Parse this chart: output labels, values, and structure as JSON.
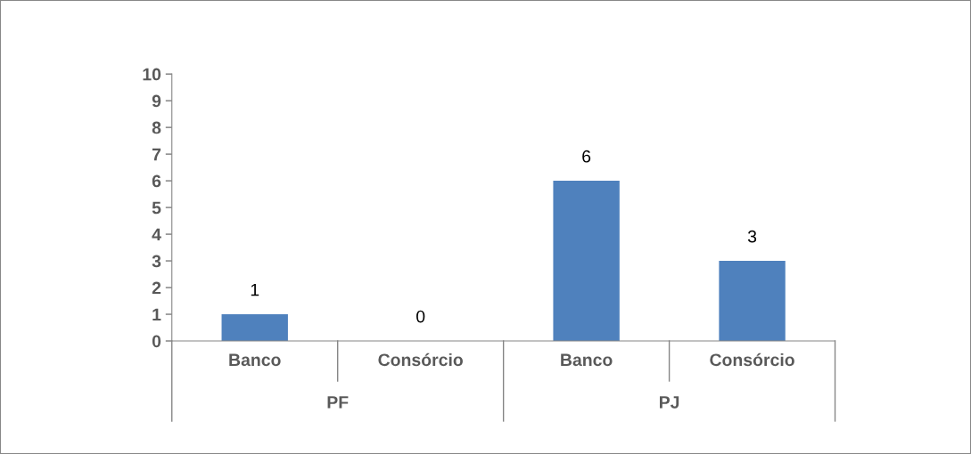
{
  "chart_data": {
    "type": "bar",
    "categories": [
      "Banco",
      "Consórcio",
      "Banco",
      "Consórcio"
    ],
    "values": [
      1,
      0,
      6,
      3
    ],
    "color": "#4f81bd",
    "ylim": [
      0,
      10
    ],
    "yticks": [
      0,
      1,
      2,
      3,
      4,
      5,
      6,
      7,
      8,
      9,
      10
    ],
    "data_labels": true,
    "grid": false,
    "legend": false,
    "annotations": [
      "PF",
      "PJ"
    ]
  }
}
